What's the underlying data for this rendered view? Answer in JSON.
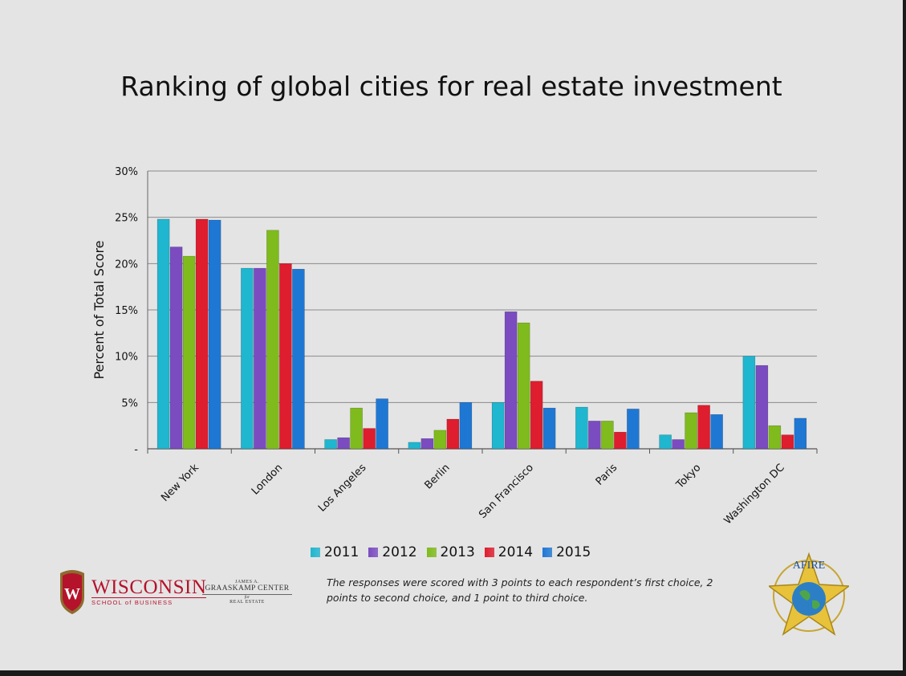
{
  "slide": {
    "title": "Ranking of global cities for real estate investment",
    "note": "The responses were scored with 3 points to each respondent’s first choice, 2 points to second choice, and 1 point to third choice.",
    "logos": {
      "uw_main": "WISCONSIN",
      "uw_sub": "SCHOOL of BUSINESS",
      "gc_top": "JAMES A.",
      "gc_main": "GRAASKAMP CENTER",
      "gc_for": "for",
      "gc_bottom": "REAL ESTATE",
      "afire": "AFIRE"
    }
  },
  "chart_data": {
    "type": "bar",
    "title": "Ranking of global cities for real estate investment",
    "ylabel": "Percent of Total Score",
    "xlabel": "",
    "ylim": [
      0,
      30
    ],
    "yticks": [
      {
        "value": 0,
        "label": "-"
      },
      {
        "value": 5,
        "label": "5%"
      },
      {
        "value": 10,
        "label": "10%"
      },
      {
        "value": 15,
        "label": "15%"
      },
      {
        "value": 20,
        "label": "20%"
      },
      {
        "value": 25,
        "label": "25%"
      },
      {
        "value": 30,
        "label": "30%"
      }
    ],
    "grid": true,
    "legend_position": "bottom",
    "categories": [
      "New York",
      "London",
      "Los Angeles",
      "Berlin",
      "San Francisco",
      "Paris",
      "Tokyo",
      "Washington DC"
    ],
    "series": [
      {
        "name": "2011",
        "color": "#1fb6cf",
        "values": [
          24.8,
          19.5,
          1.0,
          0.7,
          5.0,
          4.5,
          1.5,
          10.0
        ]
      },
      {
        "name": "2012",
        "color": "#7a4cc0",
        "values": [
          21.8,
          19.5,
          1.2,
          1.1,
          14.8,
          3.0,
          1.0,
          9.0
        ]
      },
      {
        "name": "2013",
        "color": "#7fbb1c",
        "values": [
          20.8,
          23.6,
          4.4,
          2.0,
          13.6,
          3.0,
          3.9,
          2.5
        ]
      },
      {
        "name": "2014",
        "color": "#de1d2e",
        "values": [
          24.8,
          20.0,
          2.2,
          3.2,
          7.3,
          1.8,
          4.7,
          1.5
        ]
      },
      {
        "name": "2015",
        "color": "#1f77d4",
        "values": [
          24.7,
          19.4,
          5.4,
          5.0,
          4.4,
          4.3,
          3.7,
          3.3
        ]
      }
    ]
  }
}
